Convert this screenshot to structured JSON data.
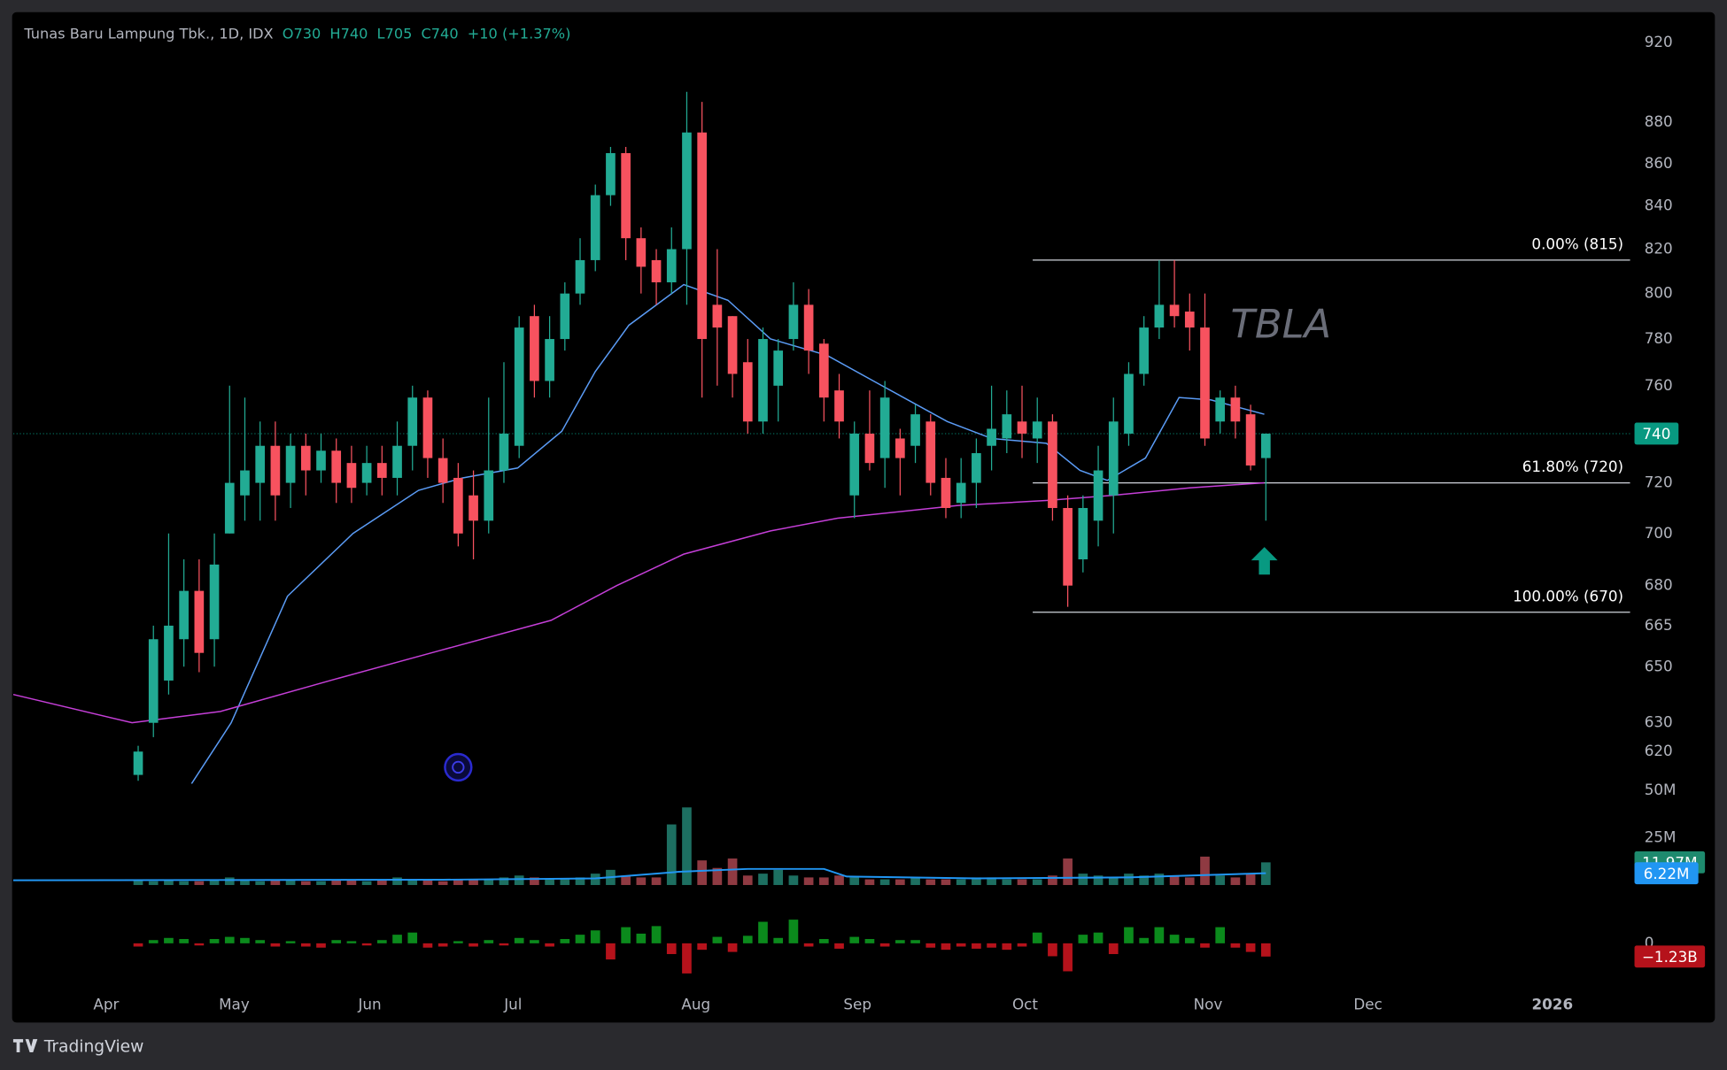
{
  "chart_data": {
    "type": "candlestick",
    "title": "Tunas Baru Lampung Tbk., 1D, IDX",
    "header": {
      "open": "O730",
      "high": "H740",
      "low": "L705",
      "close": "C740",
      "change": "+10 (+1.37%)"
    },
    "watermark": "TBLA",
    "log_scale": true,
    "grid": false,
    "up_color": "#22ab94",
    "down_color": "#f7525f",
    "x": [
      0,
      1,
      2,
      3,
      4,
      5,
      6,
      7,
      8,
      9,
      10,
      11,
      12,
      13,
      14,
      15,
      16,
      17,
      18,
      19,
      20,
      21,
      22,
      23,
      24,
      25,
      26,
      27,
      28,
      29,
      30,
      31,
      32,
      33,
      34,
      35,
      36,
      37,
      38,
      39,
      40,
      41,
      42,
      43,
      44,
      45,
      46,
      47,
      48,
      49,
      50,
      51,
      52,
      53,
      54,
      55,
      56,
      57,
      58,
      59,
      60,
      61,
      62,
      63,
      64,
      65,
      66,
      67,
      68,
      69,
      70,
      71,
      72,
      73,
      74
    ],
    "open": [
      612,
      630,
      645,
      660,
      678,
      660,
      700,
      715,
      720,
      735,
      720,
      735,
      725,
      733,
      728,
      720,
      728,
      722,
      735,
      755,
      730,
      722,
      715,
      705,
      725,
      735,
      790,
      762,
      780,
      800,
      815,
      845,
      865,
      825,
      815,
      805,
      820,
      875,
      795,
      790,
      770,
      745,
      760,
      780,
      795,
      778,
      758,
      715,
      740,
      730,
      738,
      735,
      745,
      722,
      712,
      720,
      735,
      738,
      745,
      738,
      745,
      710,
      690,
      705,
      715,
      740,
      765,
      785,
      795,
      792,
      785,
      745,
      755,
      748,
      730
    ],
    "high": [
      622,
      665,
      700,
      690,
      690,
      700,
      760,
      755,
      745,
      745,
      740,
      740,
      740,
      738,
      735,
      735,
      735,
      745,
      760,
      758,
      738,
      728,
      725,
      755,
      770,
      790,
      795,
      790,
      805,
      825,
      850,
      868,
      868,
      830,
      820,
      830,
      895,
      890,
      820,
      790,
      780,
      785,
      780,
      805,
      802,
      780,
      765,
      745,
      758,
      762,
      742,
      752,
      748,
      730,
      730,
      738,
      760,
      758,
      760,
      755,
      748,
      715,
      715,
      735,
      755,
      770,
      790,
      815,
      815,
      800,
      800,
      758,
      760,
      752,
      740
    ],
    "low": [
      610,
      625,
      640,
      650,
      648,
      650,
      700,
      705,
      705,
      705,
      710,
      715,
      720,
      712,
      712,
      715,
      715,
      715,
      725,
      722,
      712,
      695,
      690,
      700,
      720,
      730,
      755,
      755,
      775,
      795,
      810,
      840,
      815,
      800,
      795,
      800,
      795,
      755,
      760,
      755,
      740,
      740,
      745,
      775,
      765,
      745,
      738,
      706,
      725,
      718,
      715,
      728,
      715,
      706,
      706,
      710,
      725,
      732,
      730,
      728,
      705,
      672,
      685,
      695,
      700,
      735,
      760,
      780,
      785,
      775,
      735,
      740,
      738,
      725,
      705
    ],
    "close": [
      620,
      660,
      665,
      678,
      655,
      688,
      720,
      725,
      735,
      715,
      735,
      725,
      733,
      720,
      718,
      728,
      722,
      735,
      755,
      730,
      720,
      700,
      705,
      725,
      740,
      785,
      762,
      780,
      800,
      815,
      845,
      865,
      825,
      812,
      805,
      820,
      875,
      780,
      785,
      765,
      745,
      780,
      775,
      795,
      775,
      755,
      745,
      740,
      728,
      755,
      730,
      748,
      720,
      710,
      720,
      732,
      742,
      748,
      740,
      745,
      710,
      680,
      710,
      725,
      745,
      765,
      785,
      795,
      790,
      785,
      738,
      755,
      745,
      727,
      740
    ],
    "last_price": 740,
    "last_price_color": "#089981",
    "ma": [
      {
        "color": "#5b9cf6",
        "x": [
          3.5,
          6.1,
          9.8,
          14.1,
          18.4,
          21.3,
          24.9,
          27.8,
          30,
          32.2,
          35.8,
          38.7,
          41.5,
          45.2,
          48.8,
          53.1,
          56,
          59.6,
          61.8,
          63.6,
          66.1,
          68.3,
          70.4,
          73.9
        ],
        "values": [
          609,
          630,
          676,
          700,
          717,
          722,
          726,
          741,
          766,
          786,
          804,
          797,
          780,
          773,
          760,
          745,
          738,
          736,
          725,
          721,
          730,
          755,
          754,
          748
        ]
      },
      {
        "color": "#c53fd8",
        "x": [
          -8.2,
          -0.4,
          5.4,
          12.6,
          19.9,
          27.1,
          31.4,
          35.8,
          41.5,
          45.9,
          53.8,
          59.6,
          63.9,
          69,
          73.9
        ],
        "values": [
          640,
          630,
          634,
          645,
          656,
          667,
          680,
          692,
          701,
          706,
          711,
          713,
          715,
          718,
          720
        ]
      }
    ],
    "fib": {
      "x_start": 58.7,
      "color": "#d1d4dc",
      "levels": [
        {
          "value": 815,
          "label": "0.00% (815)"
        },
        {
          "value": 720,
          "label": "61.80% (720)"
        },
        {
          "value": 670,
          "label": "100.00% (670)"
        }
      ]
    },
    "xlim": [
      -8.2,
      97.9
    ],
    "ylim": [
      609,
      935
    ],
    "yticks": [
      920,
      880,
      860,
      840,
      820,
      800,
      780,
      760,
      720,
      700,
      680,
      665,
      650,
      630,
      620
    ],
    "xticks": [
      {
        "value": -2.1,
        "label": "Apr"
      },
      {
        "value": 6.3,
        "label": "May"
      },
      {
        "value": 15.2,
        "label": "Jun"
      },
      {
        "value": 24.6,
        "label": "Jul"
      },
      {
        "value": 36.6,
        "label": "Aug"
      },
      {
        "value": 47.2,
        "label": "Sep"
      },
      {
        "value": 58.2,
        "label": "Oct"
      },
      {
        "value": 70.2,
        "label": "Nov"
      },
      {
        "value": 80.7,
        "label": "Dec"
      },
      {
        "value": 92.8,
        "label": "2026"
      }
    ],
    "volume": {
      "values": [
        3,
        2,
        3,
        2,
        2,
        3,
        4,
        3,
        2,
        3,
        3,
        2,
        2,
        3,
        3,
        2,
        3,
        4,
        3,
        3,
        2,
        3,
        3,
        3,
        4,
        5,
        4,
        3,
        3,
        4,
        6,
        8,
        5,
        4,
        4,
        32,
        41,
        13,
        9,
        14,
        5,
        6,
        8,
        5,
        4,
        4,
        5,
        4,
        3,
        3,
        3,
        4,
        3,
        3,
        3,
        4,
        4,
        3,
        3,
        3,
        5,
        14,
        6,
        5,
        4,
        6,
        5,
        6,
        5,
        4,
        15,
        5,
        4,
        6,
        11.97
      ],
      "last_label": "11.97M",
      "up_color": "#1d6f61",
      "down_color": "#8f3a42",
      "ylim": [
        0,
        53.5
      ],
      "yticks": [
        {
          "value": 50,
          "label": "50M"
        },
        {
          "value": 25,
          "label": "25M"
        }
      ],
      "ma": {
        "color": "#2196f3",
        "x": [
          -8.2,
          20,
          30,
          35.5,
          40,
          45,
          46.5,
          55,
          65,
          74
        ],
        "values": [
          2.5,
          2.8,
          3.5,
          7,
          8.5,
          8.5,
          4.5,
          3.5,
          4,
          6.22
        ],
        "last_label": "6.22M"
      }
    },
    "flow": {
      "values": [
        -0.3,
        0.3,
        0.5,
        0.4,
        -0.2,
        0.4,
        0.6,
        0.5,
        0.3,
        -0.3,
        0.2,
        -0.3,
        -0.4,
        0.3,
        0.2,
        -0.2,
        0.3,
        0.8,
        1.0,
        -0.4,
        -0.3,
        0.2,
        -0.3,
        0.3,
        -0.2,
        0.5,
        0.3,
        -0.3,
        0.4,
        0.8,
        1.2,
        -1.5,
        1.5,
        0.9,
        1.6,
        -1.0,
        -2.8,
        -0.6,
        0.6,
        -0.8,
        0.7,
        2.0,
        0.5,
        2.2,
        -0.3,
        0.4,
        -0.5,
        0.6,
        0.4,
        -0.3,
        0.3,
        0.3,
        -0.4,
        -0.6,
        -0.3,
        -0.5,
        -0.4,
        -0.6,
        -0.3,
        1.0,
        -1.2,
        -2.6,
        0.8,
        1.0,
        -1.0,
        1.5,
        0.5,
        1.5,
        0.8,
        0.5,
        -0.4,
        1.5,
        -0.4,
        -0.8,
        -1.23
      ],
      "last_label": "−1.23B",
      "up_color": "#0b8a1c",
      "down_color": "#b5121b",
      "ylim": [
        -4.4,
        4.6
      ],
      "yticks": [
        0
      ]
    },
    "brand": "TradingView"
  }
}
